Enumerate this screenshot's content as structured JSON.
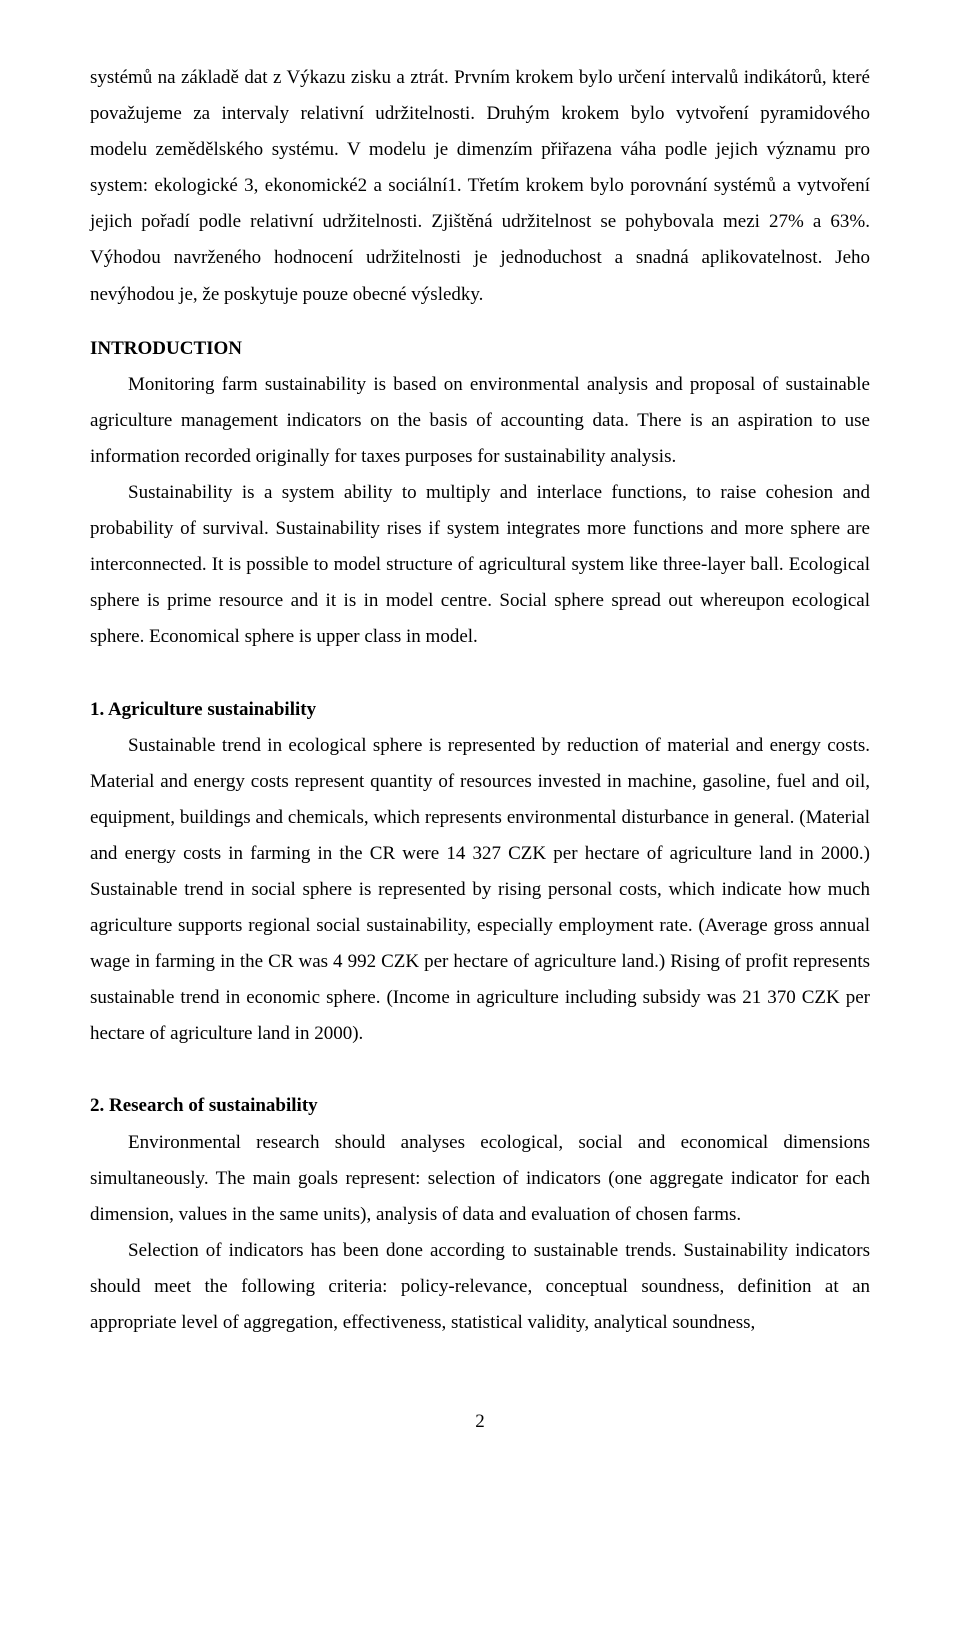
{
  "abstract_cs": {
    "text": "systémů na základě dat z Výkazu zisku a ztrát. Prvním krokem bylo určení intervalů indikátorů, které považujeme za intervaly relativní udržitelnosti. Druhým krokem bylo vytvoření pyramidového modelu zemědělského systému. V modelu je dimenzím přiřazena váha podle jejich významu pro system: ekologické 3, ekonomické2 a sociální1. Třetím krokem bylo porovnání systémů a vytvoření jejich pořadí podle relativní udržitelnosti. Zjištěná udržitelnost se pohybovala mezi 27% a 63%. Výhodou navrženého hodnocení udržitelnosti je jednoduchost a snadná aplikovatelnost. Jeho nevýhodou je, že poskytuje pouze obecné výsledky."
  },
  "introduction": {
    "title": "INTRODUCTION",
    "p1": "Monitoring farm sustainability is based on environmental analysis and proposal of sustainable agriculture management indicators on the basis of accounting data. There is an aspiration to use information recorded originally for taxes purposes for sustainability analysis.",
    "p2": "Sustainability is a system ability to multiply and interlace functions, to raise cohesion and probability of survival. Sustainability rises if system integrates more functions and more sphere are interconnected. It is possible to model structure of agricultural system like three-layer ball. Ecological sphere is prime resource and it is in model centre. Social sphere spread out whereupon ecological sphere. Economical sphere is upper class in model."
  },
  "section1": {
    "title": "1. Agriculture sustainability",
    "p1": "Sustainable trend in ecological sphere is represented by reduction of material and energy costs. Material and energy costs represent quantity of resources invested in machine, gasoline, fuel and oil, equipment, buildings and chemicals, which represents environmental disturbance in general. (Material and energy costs in farming in the CR were 14 327 CZK per hectare of agriculture land in 2000.) Sustainable trend in social sphere is represented by rising personal costs, which indicate how much agriculture supports regional social sustainability, especially employment rate. (Average gross annual wage in farming in the CR was 4 992 CZK per hectare of agriculture land.) Rising of profit represents sustainable trend in economic sphere. (Income in agriculture including subsidy was 21 370 CZK per hectare of agriculture land in 2000)."
  },
  "section2": {
    "title": "2. Research of sustainability",
    "p1": "Environmental research should analyses ecological, social and economical dimensions simultaneously. The main goals represent: selection of indicators (one aggregate indicator for each dimension, values in the same units), analysis of data and evaluation of chosen farms.",
    "p2": "Selection of indicators has been done according to sustainable trends. Sustainability indicators should meet the following criteria: policy-relevance, conceptual soundness, definition at an appropriate level of aggregation, effectiveness, statistical validity, analytical soundness,"
  },
  "page_number": "2"
}
